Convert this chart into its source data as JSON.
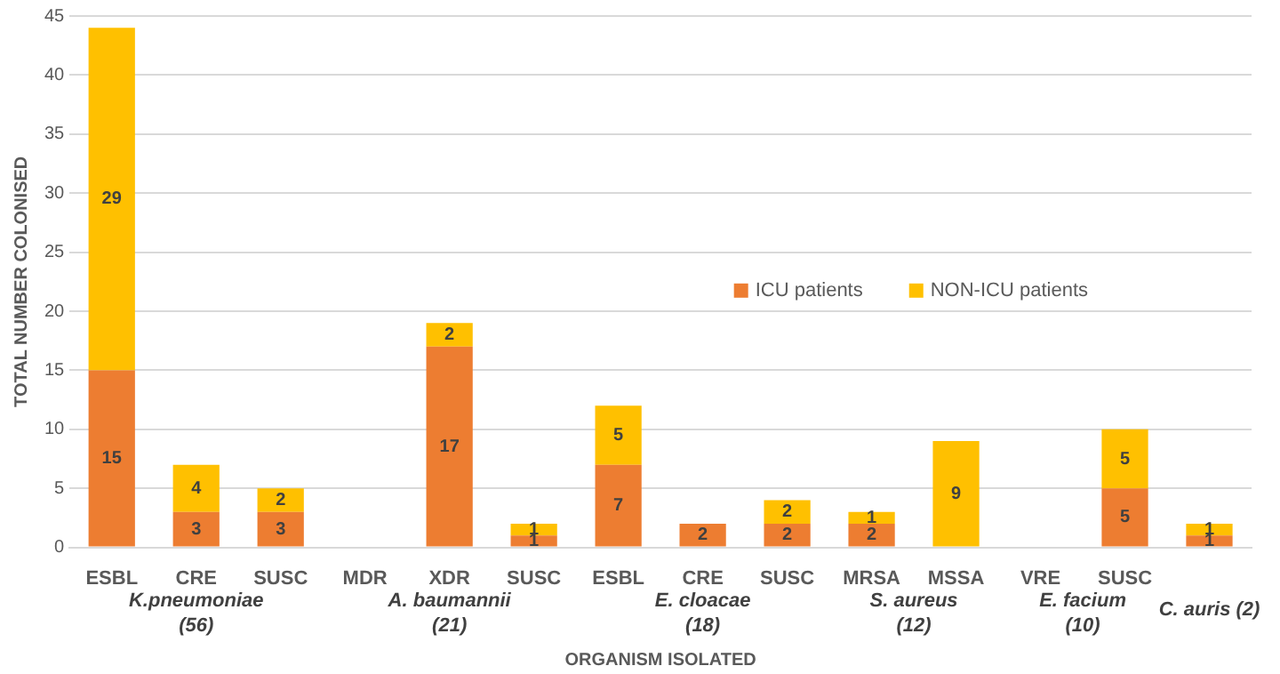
{
  "chart_data": {
    "type": "bar",
    "stacked": true,
    "ylabel": "TOTAL NUMBER COLONISED",
    "xlabel": "ORGANISM ISOLATED",
    "categories": [
      "ESBL",
      "CRE",
      "SUSC",
      "MDR",
      "XDR",
      "SUSC",
      "ESBL",
      "CRE",
      "SUSC",
      "MRSA",
      "MSSA",
      "VRE",
      "SUSC",
      null
    ],
    "series": [
      {
        "name": "ICU patients",
        "color": "#ed7d31",
        "values": [
          15,
          3,
          3,
          0,
          17,
          1,
          7,
          2,
          2,
          2,
          0,
          0,
          5,
          1
        ],
        "value_labels": [
          "15",
          "3",
          "3",
          null,
          "17",
          "1",
          "7",
          "2",
          "2",
          "2",
          null,
          null,
          "5",
          "1"
        ]
      },
      {
        "name": "NON-ICU patients",
        "color": "#ffc000",
        "values": [
          29,
          4,
          2,
          0,
          2,
          1,
          5,
          0,
          2,
          1,
          9,
          0,
          5,
          1
        ],
        "value_labels": [
          "29",
          "4",
          "2",
          null,
          "2",
          "1",
          "5",
          null,
          "2",
          "1",
          "9",
          null,
          "5",
          "1"
        ]
      }
    ],
    "ylim": [
      0,
      45
    ],
    "yticks": [
      0,
      5,
      10,
      15,
      20,
      25,
      30,
      35,
      40,
      45
    ],
    "grid": "y",
    "legend": "right",
    "annotations": [
      "K.pneumoniae (56)",
      "A. baumannii (21)",
      "E. cloacae (18)",
      "S. aureus (12)",
      "E. facium (10)",
      "C. auris (2)"
    ]
  }
}
